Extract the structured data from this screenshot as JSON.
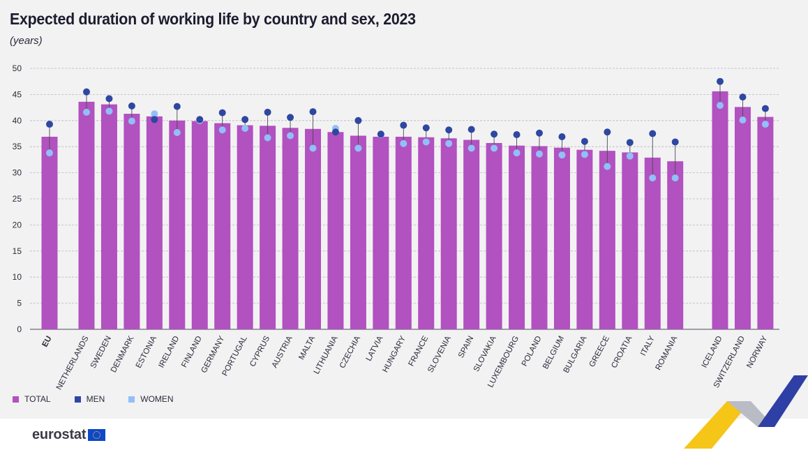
{
  "title": "Expected duration of working life by country and sex, 2023",
  "subtitle": "(years)",
  "brand": "eurostat",
  "legend": [
    {
      "label": "TOTAL",
      "color": "#b251c0"
    },
    {
      "label": "MEN",
      "color": "#2f47a0"
    },
    {
      "label": "WOMEN",
      "color": "#92bff7"
    }
  ],
  "chart_data": {
    "type": "bar",
    "ylim": [
      0,
      50
    ],
    "yticks": [
      0,
      5,
      10,
      15,
      20,
      25,
      30,
      35,
      40,
      45,
      50
    ],
    "grid": true,
    "legend_position": "bottom-left",
    "categories": [
      "EU",
      "NETHERLANDS",
      "SWEDEN",
      "DENMARK",
      "ESTONIA",
      "IRELAND",
      "FINLAND",
      "GERMANY",
      "PORTUGAL",
      "CYPRUS",
      "AUSTRIA",
      "MALTA",
      "LITHUANIA",
      "CZECHIA",
      "LATVIA",
      "HUNGARY",
      "FRANCE",
      "SLOVENIA",
      "SPAIN",
      "SLOVAKIA",
      "LUXEMBOURG",
      "POLAND",
      "BELGIUM",
      "BULGARIA",
      "GREECE",
      "CROATIA",
      "ITALY",
      "ROMANIA",
      "ICELAND",
      "SWITZERLAND",
      "NORWAY"
    ],
    "series": [
      {
        "name": "TOTAL",
        "values": [
          36.9,
          43.6,
          43.1,
          41.3,
          40.8,
          40.0,
          39.9,
          39.5,
          39.1,
          39.0,
          38.6,
          38.4,
          37.8,
          37.1,
          36.9,
          36.9,
          36.8,
          36.6,
          36.3,
          35.7,
          35.2,
          35.1,
          34.8,
          34.4,
          34.2,
          33.9,
          32.9,
          32.2,
          45.6,
          42.6,
          40.7
        ]
      },
      {
        "name": "MEN",
        "values": [
          39.3,
          45.5,
          44.2,
          42.8,
          40.2,
          42.7,
          40.2,
          41.5,
          40.2,
          41.6,
          40.6,
          41.7,
          37.8,
          40.0,
          37.4,
          39.1,
          38.6,
          38.2,
          38.3,
          37.4,
          37.3,
          37.6,
          36.9,
          36.0,
          37.8,
          35.8,
          37.5,
          35.9,
          47.5,
          44.5,
          42.3
        ]
      },
      {
        "name": "WOMEN",
        "values": [
          33.8,
          41.6,
          41.8,
          39.9,
          41.3,
          37.7,
          40.0,
          38.2,
          38.5,
          36.7,
          37.1,
          34.7,
          38.5,
          34.7,
          37.3,
          35.6,
          35.9,
          35.6,
          34.7,
          34.7,
          33.8,
          33.6,
          33.4,
          33.5,
          31.2,
          33.2,
          29.0,
          29.0,
          42.9,
          40.1,
          39.3
        ]
      }
    ]
  }
}
